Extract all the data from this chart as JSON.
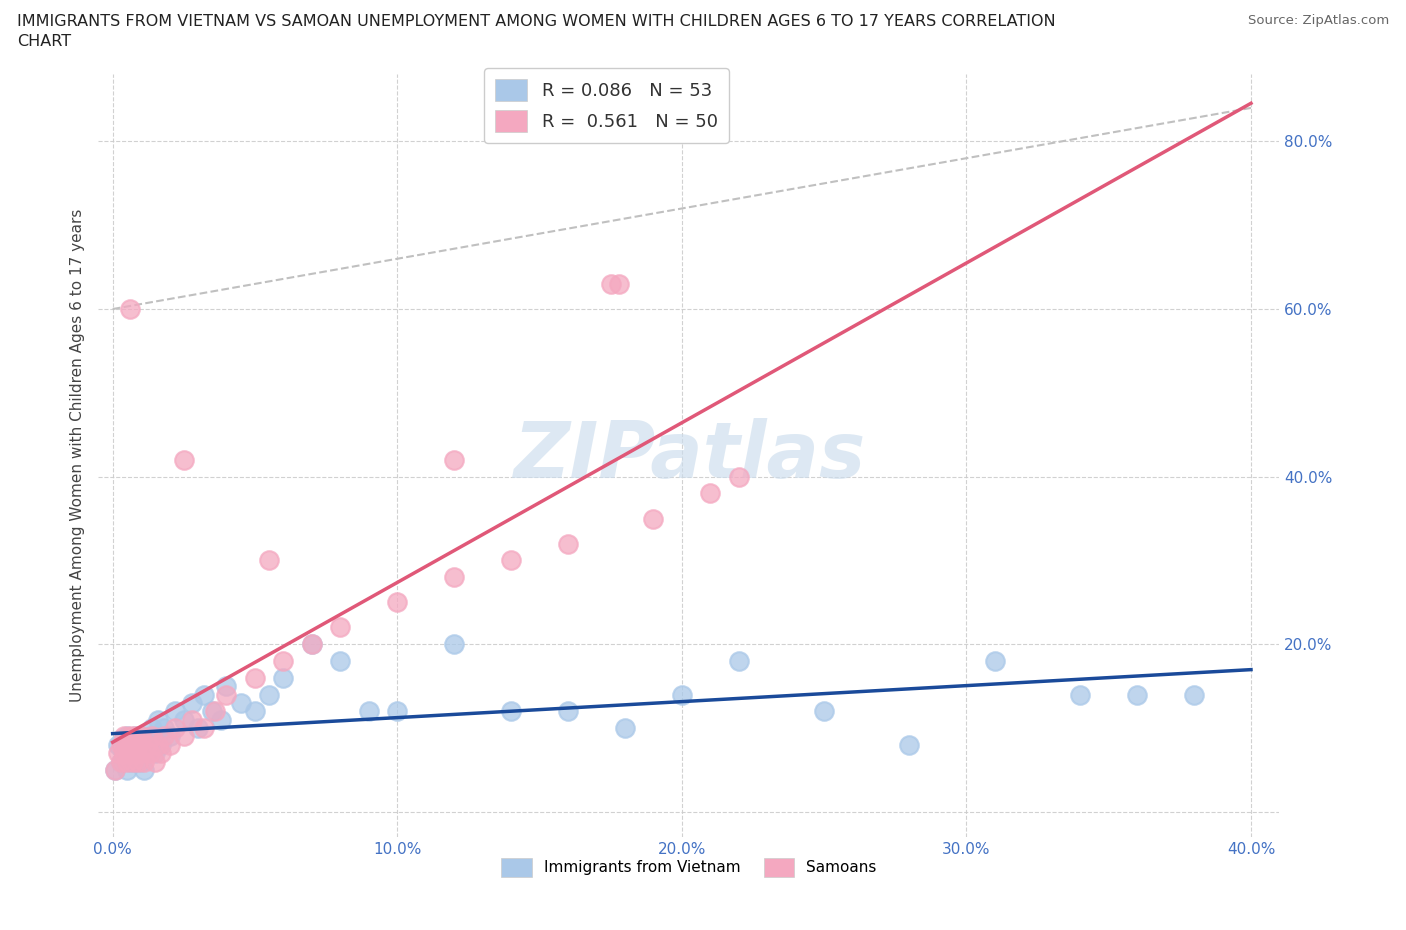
{
  "title_line1": "IMMIGRANTS FROM VIETNAM VS SAMOAN UNEMPLOYMENT AMONG WOMEN WITH CHILDREN AGES 6 TO 17 YEARS CORRELATION",
  "title_line2": "CHART",
  "source": "Source: ZipAtlas.com",
  "ylabel": "Unemployment Among Women with Children Ages 6 to 17 years",
  "xlim": [
    -0.005,
    0.41
  ],
  "ylim": [
    -0.03,
    0.88
  ],
  "xticks": [
    0.0,
    0.1,
    0.2,
    0.3,
    0.4
  ],
  "yticks": [
    0.0,
    0.2,
    0.4,
    0.6,
    0.8
  ],
  "watermark": "ZIPatlas",
  "vietnam_color": "#aac8e8",
  "samoan_color": "#f4a8c0",
  "vietnam_line_color": "#1a4a9a",
  "samoan_line_color": "#e05878",
  "gray_dash_color": "#c0c0c0",
  "legend_label_1": "R = 0.086   N = 53",
  "legend_label_2": "R =  0.561   N = 50",
  "bottom_label_1": "Immigrants from Vietnam",
  "bottom_label_2": "Samoans",
  "legend_patch_1": "#aac8e8",
  "legend_patch_2": "#f4a8c0",
  "vietnam_x": [
    0.001,
    0.002,
    0.003,
    0.004,
    0.005,
    0.005,
    0.006,
    0.006,
    0.007,
    0.008,
    0.008,
    0.009,
    0.01,
    0.01,
    0.011,
    0.012,
    0.013,
    0.013,
    0.014,
    0.015,
    0.015,
    0.016,
    0.017,
    0.018,
    0.02,
    0.022,
    0.025,
    0.028,
    0.03,
    0.032,
    0.035,
    0.038,
    0.04,
    0.045,
    0.05,
    0.055,
    0.06,
    0.07,
    0.08,
    0.09,
    0.1,
    0.12,
    0.14,
    0.16,
    0.18,
    0.2,
    0.22,
    0.25,
    0.28,
    0.31,
    0.34,
    0.36,
    0.38
  ],
  "vietnam_y": [
    0.05,
    0.08,
    0.06,
    0.07,
    0.05,
    0.09,
    0.06,
    0.08,
    0.07,
    0.06,
    0.09,
    0.07,
    0.08,
    0.06,
    0.05,
    0.07,
    0.09,
    0.08,
    0.1,
    0.07,
    0.09,
    0.11,
    0.08,
    0.1,
    0.09,
    0.12,
    0.11,
    0.13,
    0.1,
    0.14,
    0.12,
    0.11,
    0.15,
    0.13,
    0.12,
    0.14,
    0.16,
    0.2,
    0.18,
    0.12,
    0.12,
    0.2,
    0.12,
    0.12,
    0.1,
    0.14,
    0.18,
    0.12,
    0.08,
    0.18,
    0.14,
    0.14,
    0.14
  ],
  "samoan_x": [
    0.001,
    0.002,
    0.003,
    0.003,
    0.004,
    0.004,
    0.005,
    0.005,
    0.006,
    0.006,
    0.007,
    0.007,
    0.008,
    0.008,
    0.009,
    0.009,
    0.01,
    0.01,
    0.011,
    0.012,
    0.013,
    0.014,
    0.015,
    0.016,
    0.017,
    0.018,
    0.02,
    0.022,
    0.025,
    0.028,
    0.032,
    0.036,
    0.04,
    0.05,
    0.06,
    0.07,
    0.08,
    0.1,
    0.12,
    0.14,
    0.16,
    0.175,
    0.178,
    0.19,
    0.21,
    0.22,
    0.006,
    0.025,
    0.055,
    0.12
  ],
  "samoan_y": [
    0.05,
    0.07,
    0.06,
    0.08,
    0.07,
    0.09,
    0.06,
    0.08,
    0.07,
    0.09,
    0.06,
    0.08,
    0.07,
    0.09,
    0.06,
    0.08,
    0.07,
    0.09,
    0.06,
    0.08,
    0.07,
    0.09,
    0.06,
    0.08,
    0.07,
    0.09,
    0.08,
    0.1,
    0.09,
    0.11,
    0.1,
    0.12,
    0.14,
    0.16,
    0.18,
    0.2,
    0.22,
    0.25,
    0.28,
    0.3,
    0.32,
    0.63,
    0.63,
    0.35,
    0.38,
    0.4,
    0.6,
    0.42,
    0.3,
    0.42
  ]
}
